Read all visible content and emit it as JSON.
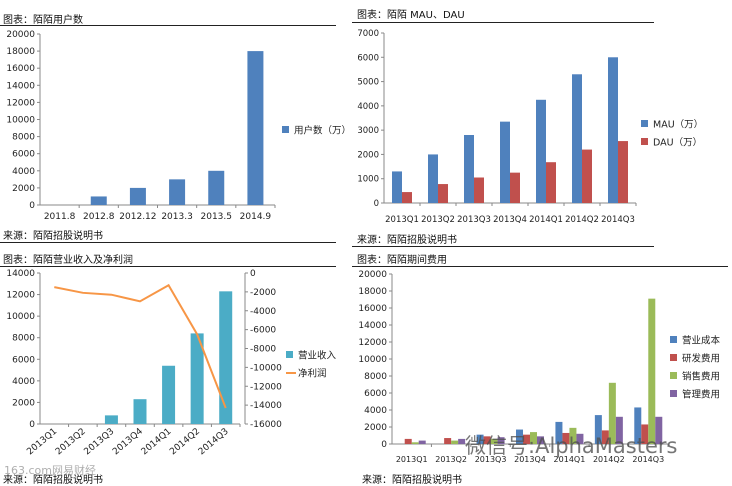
{
  "watermark": {
    "text": "微信号:AlphaMasters",
    "corner": "163.com网易财经"
  },
  "chart_data": [
    {
      "id": "users",
      "type": "bar",
      "title": "图表：陌陌用户数",
      "source": "来源：陌陌招股说明书",
      "categories": [
        "2011.8",
        "2012.8",
        "2012.12",
        "2013.3",
        "2013.5",
        "2014.9"
      ],
      "series": [
        {
          "name": "用户数（万）",
          "color": "#4F81BD",
          "values": [
            0,
            1000,
            2000,
            3000,
            4000,
            18000
          ]
        }
      ],
      "ylim": [
        0,
        20000
      ],
      "yticks": [
        "0",
        "2000",
        "4000",
        "6000",
        "8000",
        "10000",
        "12000",
        "14000",
        "16000",
        "18000",
        "20000"
      ],
      "legend": "right",
      "grid": false
    },
    {
      "id": "mau_dau",
      "type": "bar",
      "title": "图表：陌陌 MAU、DAU",
      "source": "来源：陌陌招股说明书",
      "categories": [
        "2013Q1",
        "2013Q2",
        "2013Q3",
        "2013Q4",
        "2014Q1",
        "2014Q2",
        "2014Q3"
      ],
      "series": [
        {
          "name": "MAU（万）",
          "color": "#4F81BD",
          "values": [
            1300,
            2000,
            2800,
            3350,
            4250,
            5300,
            6000
          ]
        },
        {
          "name": "DAU（万）",
          "color": "#C0504D",
          "values": [
            450,
            780,
            1050,
            1250,
            1680,
            2200,
            2550
          ]
        }
      ],
      "ylim": [
        0,
        7000
      ],
      "yticks": [
        "0",
        "1000",
        "2000",
        "3000",
        "4000",
        "5000",
        "6000",
        "7000"
      ],
      "legend": "right",
      "grid": false
    },
    {
      "id": "revenue_profit",
      "type": "bar",
      "title": "图表：陌陌营业收入及净利润",
      "source": "来源：陌陌招股说明书",
      "categories": [
        "2013Q1",
        "2013Q2",
        "2013Q3",
        "2013Q4",
        "2014Q1",
        "2014Q2",
        "2014Q3"
      ],
      "series": [
        {
          "name": "营业收入",
          "color": "#4BACC6",
          "axis": "left",
          "kind": "bar",
          "values": [
            0,
            0,
            800,
            2300,
            5400,
            8400,
            12300
          ]
        },
        {
          "name": "净利润",
          "color": "#F79646",
          "axis": "right",
          "kind": "line",
          "values": [
            -1500,
            -2100,
            -2300,
            -3000,
            -1300,
            -6500,
            -14300
          ]
        }
      ],
      "ylim": [
        0,
        14000
      ],
      "yticks": [
        "0",
        "2000",
        "4000",
        "6000",
        "8000",
        "10000",
        "12000",
        "14000"
      ],
      "y2lim": [
        -16000,
        0
      ],
      "y2ticks": [
        "0",
        "-2000",
        "-4000",
        "-6000",
        "-8000",
        "-10000",
        "-12000",
        "-14000",
        "-16000"
      ],
      "legend": "right",
      "grid": false
    },
    {
      "id": "expenses",
      "type": "bar",
      "title": "图表：陌陌期间费用",
      "source": "来源：陌陌招股说明书",
      "categories": [
        "2013Q1",
        "2013Q2",
        "2013Q3",
        "2013Q4",
        "2014Q1",
        "2014Q2",
        "2014Q3"
      ],
      "series": [
        {
          "name": "营业成本",
          "color": "#4F81BD",
          "values": [
            0,
            0,
            1100,
            1700,
            2600,
            3400,
            4300
          ]
        },
        {
          "name": "研发费用",
          "color": "#C0504D",
          "values": [
            600,
            700,
            900,
            1100,
            1300,
            1600,
            2300
          ]
        },
        {
          "name": "销售费用",
          "color": "#9BBB59",
          "values": [
            200,
            400,
            600,
            1400,
            1900,
            7200,
            17100
          ]
        },
        {
          "name": "管理费用",
          "color": "#8064A2",
          "values": [
            400,
            600,
            800,
            900,
            1200,
            3200,
            3200
          ]
        }
      ],
      "ylim": [
        0,
        20000
      ],
      "yticks": [
        "0",
        "2000",
        "4000",
        "6000",
        "8000",
        "10000",
        "12000",
        "14000",
        "16000",
        "18000",
        "20000"
      ],
      "legend": "right",
      "grid": false
    }
  ]
}
